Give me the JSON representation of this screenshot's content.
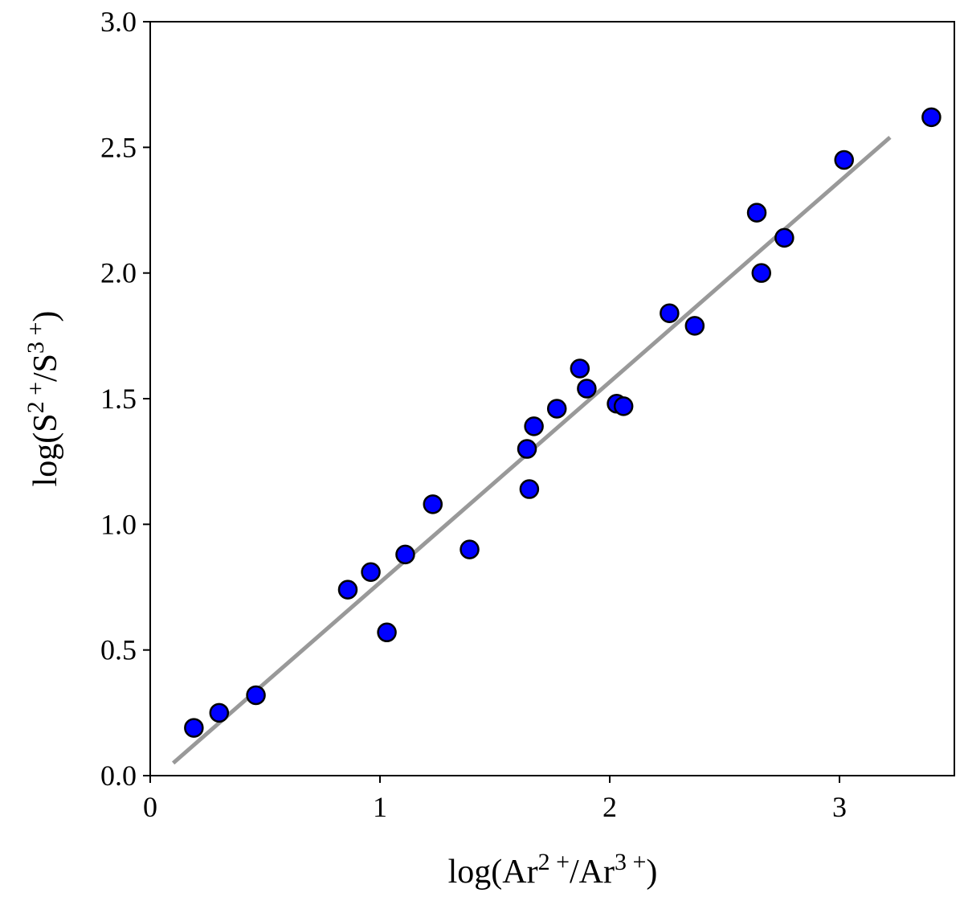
{
  "chart_data": {
    "type": "scatter",
    "title": "",
    "xlabel": {
      "parts": [
        {
          "text": "log(Ar"
        },
        {
          "text": "2 +",
          "sup": true
        },
        {
          "text": "/Ar"
        },
        {
          "text": "3 +",
          "sup": true
        },
        {
          "text": ")"
        }
      ]
    },
    "ylabel": {
      "parts": [
        {
          "text": "log(S"
        },
        {
          "text": "2 +",
          "sup": true
        },
        {
          "text": "/S"
        },
        {
          "text": "3 +",
          "sup": true
        },
        {
          "text": ")"
        }
      ]
    },
    "xlim": [
      0,
      3.5
    ],
    "ylim": [
      0,
      3.0
    ],
    "xticks": [
      0,
      1,
      2,
      3
    ],
    "xtick_labels": [
      "0",
      "1",
      "2",
      "3"
    ],
    "yticks": [
      0.0,
      0.5,
      1.0,
      1.5,
      2.0,
      2.5,
      3.0
    ],
    "ytick_labels": [
      "0.0",
      "0.5",
      "1.0",
      "1.5",
      "2.0",
      "2.5",
      "3.0"
    ],
    "grid": false,
    "legend": "none",
    "marker_color": "#0000ff",
    "marker_edge_color": "#000000",
    "line_color": "#999999",
    "points": [
      {
        "x": 0.19,
        "y": 0.19
      },
      {
        "x": 0.3,
        "y": 0.25
      },
      {
        "x": 0.46,
        "y": 0.32
      },
      {
        "x": 0.86,
        "y": 0.74
      },
      {
        "x": 0.96,
        "y": 0.81
      },
      {
        "x": 1.03,
        "y": 0.57
      },
      {
        "x": 1.11,
        "y": 0.88
      },
      {
        "x": 1.23,
        "y": 1.08
      },
      {
        "x": 1.39,
        "y": 0.9
      },
      {
        "x": 1.64,
        "y": 1.3
      },
      {
        "x": 1.65,
        "y": 1.14
      },
      {
        "x": 1.67,
        "y": 1.39
      },
      {
        "x": 1.77,
        "y": 1.46
      },
      {
        "x": 1.87,
        "y": 1.62
      },
      {
        "x": 1.9,
        "y": 1.54
      },
      {
        "x": 2.03,
        "y": 1.48
      },
      {
        "x": 2.06,
        "y": 1.47
      },
      {
        "x": 2.26,
        "y": 1.84
      },
      {
        "x": 2.37,
        "y": 1.79
      },
      {
        "x": 2.64,
        "y": 2.24
      },
      {
        "x": 2.66,
        "y": 2.0
      },
      {
        "x": 2.76,
        "y": 2.14
      },
      {
        "x": 3.02,
        "y": 2.45
      },
      {
        "x": 3.4,
        "y": 2.62
      }
    ],
    "fit_line": {
      "x": [
        0.1,
        3.22
      ],
      "y": [
        0.05,
        2.54
      ]
    }
  }
}
